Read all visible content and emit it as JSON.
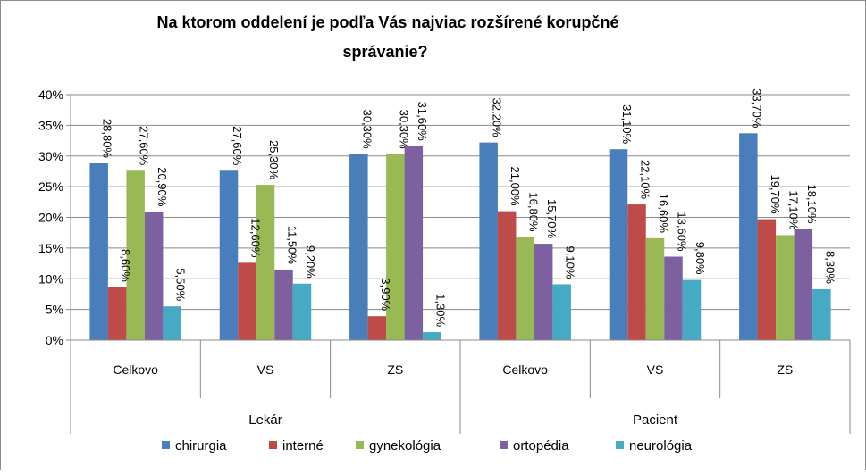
{
  "chart_data": {
    "type": "bar",
    "title": [
      "Na ktorom oddelení je podľa Vás najviac rozšírené korupčné",
      "správanie?"
    ],
    "ylim": [
      0,
      40
    ],
    "yticks": [
      "0%",
      "5%",
      "10%",
      "15%",
      "20%",
      "25%",
      "30%",
      "35%",
      "40%"
    ],
    "grid": true,
    "legend_position": "bottom",
    "groups": [
      {
        "label": "Lekár",
        "categories": [
          "Celkovo",
          "VS",
          "ZS"
        ]
      },
      {
        "label": "Pacient",
        "categories": [
          "Celkovo",
          "VS",
          "ZS"
        ]
      }
    ],
    "categories": [
      "Celkovo",
      "VS",
      "ZS",
      "Celkovo",
      "VS",
      "ZS"
    ],
    "series": [
      {
        "name": "chirurgia",
        "color": "#4a7ebb",
        "values": [
          28.8,
          27.6,
          30.3,
          32.2,
          31.1,
          33.7
        ],
        "labels": [
          "28,80%",
          "27,60%",
          "30,30%",
          "32,20%",
          "31,10%",
          "33,70%"
        ]
      },
      {
        "name": "interné",
        "color": "#be4b48",
        "values": [
          8.6,
          12.6,
          3.9,
          21.0,
          22.1,
          19.7
        ],
        "labels": [
          "8,60%",
          "12,60%",
          "3,90%",
          "21,00%",
          "22,10%",
          "19,70%"
        ]
      },
      {
        "name": "gynekológia",
        "color": "#98b954",
        "values": [
          27.6,
          25.3,
          30.3,
          16.8,
          16.6,
          17.1
        ],
        "labels": [
          "27,60%",
          "25,30%",
          "30,30%",
          "16,80%",
          "16,60%",
          "17,10%"
        ]
      },
      {
        "name": "ortopédia",
        "color": "#7d60a0",
        "values": [
          20.9,
          11.5,
          31.6,
          15.7,
          13.6,
          18.1
        ],
        "labels": [
          "20,90%",
          "11,50%",
          "31,60%",
          "15,70%",
          "13,60%",
          "18,10%"
        ]
      },
      {
        "name": "neurológia",
        "color": "#46aac5",
        "values": [
          5.5,
          9.2,
          1.3,
          9.1,
          9.8,
          8.3
        ],
        "labels": [
          "5,50%",
          "9,20%",
          "1,30%",
          "9,10%",
          "9,80%",
          "8,30%"
        ]
      }
    ]
  }
}
